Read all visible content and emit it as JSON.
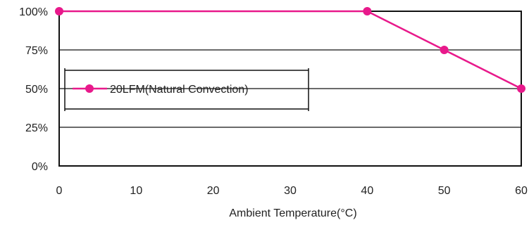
{
  "chart_data": {
    "type": "line",
    "xlabel": "Ambient Temperature(°C)",
    "ylabel": "",
    "xlim": [
      0,
      60
    ],
    "ylim": [
      0,
      100
    ],
    "x_ticks": [
      0,
      10,
      20,
      30,
      40,
      50,
      60
    ],
    "x_tick_labels": [
      "0",
      "10",
      "20",
      "30",
      "40",
      "50",
      "60"
    ],
    "y_ticks": [
      0,
      25,
      50,
      75,
      100
    ],
    "y_tick_labels": [
      "0%",
      "25%",
      "50%",
      "75%",
      "100%"
    ],
    "grid": "horizontal",
    "legend_position": "middle-left",
    "series": [
      {
        "name": "20LFM(Natural Convection)",
        "color": "#e8198b",
        "x": [
          0,
          40,
          50,
          60
        ],
        "y": [
          100,
          100,
          75,
          50
        ]
      }
    ]
  }
}
